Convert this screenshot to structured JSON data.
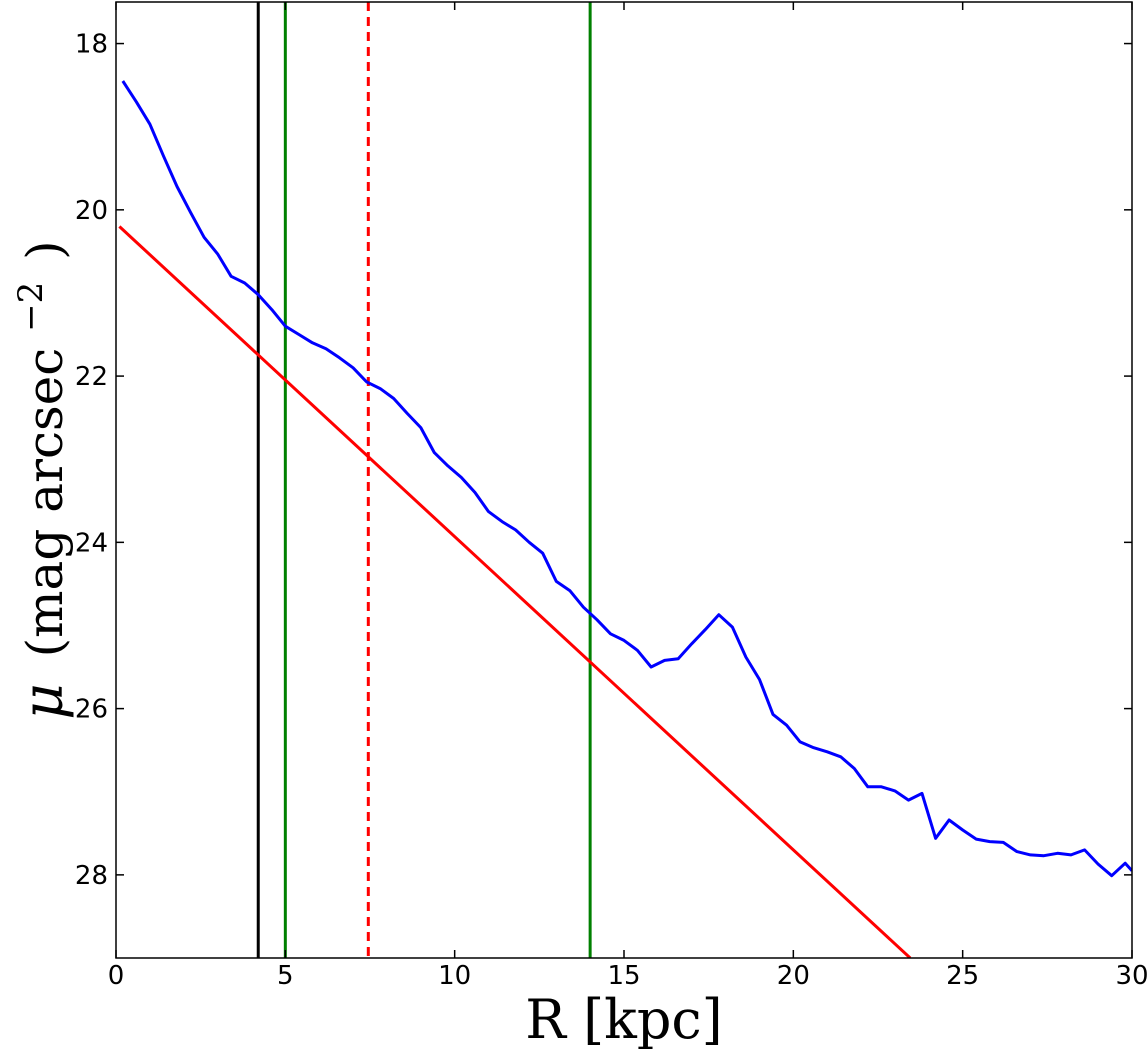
{
  "chart_data": {
    "type": "line",
    "title": "",
    "xlabel": "R [kpc]",
    "ylabel": "μ (mag arcsec⁻²)",
    "ylabel_parts": {
      "symbol": "μ",
      "rest": "(mag arcsec",
      "exp": "−2",
      "close": ")"
    },
    "xlim": [
      0,
      30
    ],
    "ylim": [
      29.0,
      17.5
    ],
    "y_inverted": true,
    "grid": false,
    "legend": "none",
    "x_ticks": [
      0,
      5,
      10,
      15,
      20,
      25,
      30
    ],
    "y_ticks": [
      18,
      20,
      22,
      24,
      26,
      28
    ],
    "series": [
      {
        "color": "#0000ff",
        "style": "solid",
        "x": [
          0.2,
          0.6,
          1.0,
          1.4,
          1.8,
          2.2,
          2.6,
          3.0,
          3.4,
          3.8,
          4.2,
          4.6,
          5.0,
          5.4,
          5.8,
          6.2,
          6.6,
          7.0,
          7.4,
          7.8,
          8.2,
          8.6,
          9.0,
          9.4,
          9.8,
          10.2,
          10.6,
          11.0,
          11.4,
          11.8,
          12.2,
          12.6,
          13.0,
          13.4,
          13.8,
          14.2,
          14.6,
          15.0,
          15.4,
          15.8,
          16.2,
          16.6,
          17.0,
          17.4,
          17.8,
          18.2,
          18.6,
          19.0,
          19.4,
          19.8,
          20.2,
          20.6,
          21.0,
          21.4,
          21.8,
          22.2,
          22.6,
          23.0,
          23.4,
          23.8,
          24.2,
          24.6,
          25.0,
          25.4,
          25.8,
          26.2,
          26.6,
          27.0,
          27.4,
          27.8,
          28.2,
          28.6,
          29.0,
          29.4,
          29.8,
          30.0
        ],
        "y": [
          18.45,
          18.7,
          18.97,
          19.35,
          19.72,
          20.03,
          20.33,
          20.53,
          20.8,
          20.88,
          21.02,
          21.2,
          21.4,
          21.5,
          21.6,
          21.67,
          21.78,
          21.9,
          22.07,
          22.15,
          22.27,
          22.45,
          22.62,
          22.92,
          23.08,
          23.22,
          23.4,
          23.63,
          23.75,
          23.85,
          24.0,
          24.13,
          24.47,
          24.58,
          24.78,
          24.93,
          25.1,
          25.18,
          25.3,
          25.5,
          25.42,
          25.4,
          25.22,
          25.05,
          24.87,
          25.02,
          25.38,
          25.65,
          26.07,
          26.2,
          26.4,
          26.47,
          26.52,
          26.58,
          26.72,
          26.94,
          26.94,
          26.99,
          27.1,
          27.02,
          27.56,
          27.34,
          27.46,
          27.57,
          27.6,
          27.61,
          27.72,
          27.76,
          27.77,
          27.74,
          27.76,
          27.7,
          27.87,
          28.01,
          27.86,
          27.95
        ]
      },
      {
        "color": "#ff0000",
        "style": "solid",
        "x": [
          0.1,
          23.45
        ],
        "y": [
          20.2,
          29.0
        ]
      }
    ],
    "vlines": [
      {
        "x": 4.2,
        "color": "#000000",
        "style": "solid"
      },
      {
        "x": 5.0,
        "color": "#008000",
        "style": "solid"
      },
      {
        "x": 7.45,
        "color": "#ff0000",
        "style": "dashed"
      },
      {
        "x": 14.0,
        "color": "#008000",
        "style": "solid"
      }
    ]
  }
}
